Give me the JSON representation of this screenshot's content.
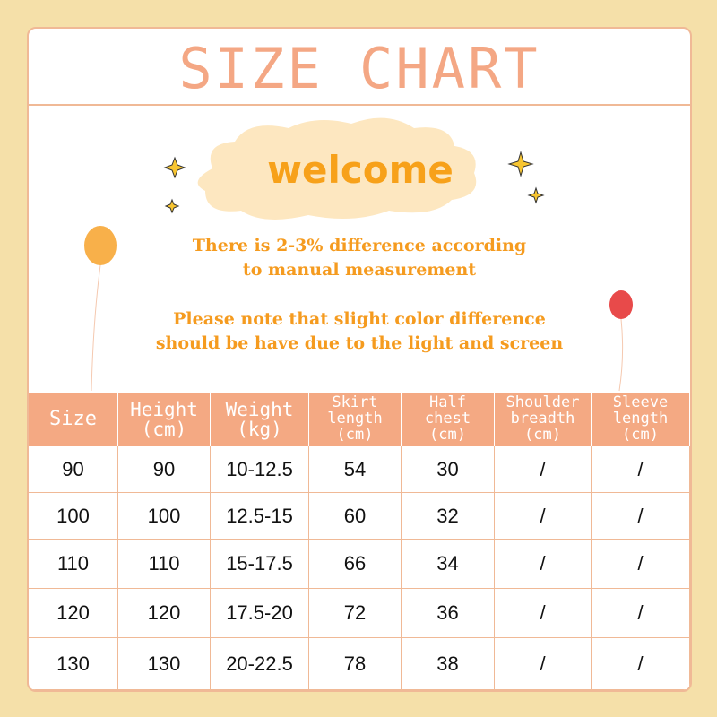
{
  "header": {
    "title": "SIZE CHART"
  },
  "welcome": "welcome",
  "notes": [
    [
      "There is 2-3% difference according",
      "to manual measurement"
    ],
    [
      "Please note that slight color difference",
      "should be have due to the light and screen"
    ]
  ],
  "table": {
    "headers": [
      [
        "Size"
      ],
      [
        "Height",
        "(cm)"
      ],
      [
        "Weight",
        "(kg)"
      ],
      [
        "Skirt",
        "length",
        "(cm)"
      ],
      [
        "Half",
        "chest",
        "(cm)"
      ],
      [
        "Shoulder",
        "breadth",
        "(cm)"
      ],
      [
        "Sleeve",
        "length",
        "(cm)"
      ]
    ],
    "rows": [
      [
        "90",
        "90",
        "10-12.5",
        "54",
        "30",
        "/",
        "/"
      ],
      [
        "100",
        "100",
        "12.5-15",
        "60",
        "32",
        "/",
        "/"
      ],
      [
        "110",
        "110",
        "15-17.5",
        "66",
        "34",
        "/",
        "/"
      ],
      [
        "120",
        "120",
        "17.5-20",
        "72",
        "36",
        "/",
        "/"
      ],
      [
        "130",
        "130",
        "20-22.5",
        "78",
        "38",
        "/",
        "/"
      ]
    ]
  }
}
